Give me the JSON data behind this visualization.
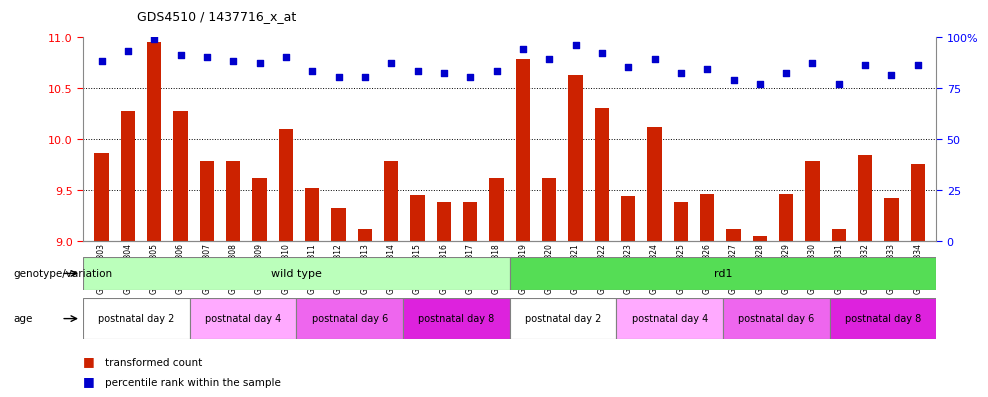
{
  "title": "GDS4510 / 1437716_x_at",
  "samples": [
    "GSM1024803",
    "GSM1024804",
    "GSM1024805",
    "GSM1024806",
    "GSM1024807",
    "GSM1024808",
    "GSM1024809",
    "GSM1024810",
    "GSM1024811",
    "GSM1024812",
    "GSM1024813",
    "GSM1024814",
    "GSM1024815",
    "GSM1024816",
    "GSM1024817",
    "GSM1024818",
    "GSM1024819",
    "GSM1024820",
    "GSM1024821",
    "GSM1024822",
    "GSM1024823",
    "GSM1024824",
    "GSM1024825",
    "GSM1024826",
    "GSM1024827",
    "GSM1024828",
    "GSM1024829",
    "GSM1024830",
    "GSM1024831",
    "GSM1024832",
    "GSM1024833",
    "GSM1024834"
  ],
  "bar_values": [
    9.86,
    10.27,
    10.95,
    10.27,
    9.78,
    9.78,
    9.62,
    10.1,
    9.52,
    9.32,
    9.12,
    9.78,
    9.45,
    9.38,
    9.38,
    9.62,
    10.78,
    9.62,
    10.62,
    10.3,
    9.44,
    10.12,
    9.38,
    9.46,
    9.12,
    9.05,
    9.46,
    9.78,
    9.12,
    9.84,
    9.42,
    9.75
  ],
  "percentile_values": [
    88,
    93,
    99,
    91,
    90,
    88,
    87,
    90,
    83,
    80,
    80,
    87,
    83,
    82,
    80,
    83,
    94,
    89,
    96,
    92,
    85,
    89,
    82,
    84,
    79,
    77,
    82,
    87,
    77,
    86,
    81,
    86
  ],
  "ylim_left": [
    9.0,
    11.0
  ],
  "ylim_right": [
    0,
    100
  ],
  "yticks_left": [
    9.0,
    9.5,
    10.0,
    10.5,
    11.0
  ],
  "yticks_right": [
    0,
    25,
    50,
    75,
    100
  ],
  "bar_color": "#cc2200",
  "dot_color": "#0000cc",
  "wild_type_color": "#bbffbb",
  "rd1_color": "#55dd55",
  "age_day2_color": "#ffffff",
  "age_day4_color": "#ffaaff",
  "age_day6_color": "#ee66ee",
  "age_day8_color": "#dd22dd",
  "bg_color": "#ffffff",
  "grid_color": "#000000",
  "legend_red": "#cc2200",
  "legend_blue": "#0000cc",
  "age_groups": [
    {
      "start": 0,
      "end": 4,
      "label": "postnatal day 2",
      "color": "#ffffff"
    },
    {
      "start": 4,
      "end": 8,
      "label": "postnatal day 4",
      "color": "#ffaaff"
    },
    {
      "start": 8,
      "end": 12,
      "label": "postnatal day 6",
      "color": "#ee66ee"
    },
    {
      "start": 12,
      "end": 16,
      "label": "postnatal day 8",
      "color": "#dd22dd"
    },
    {
      "start": 16,
      "end": 20,
      "label": "postnatal day 2",
      "color": "#ffffff"
    },
    {
      "start": 20,
      "end": 24,
      "label": "postnatal day 4",
      "color": "#ffaaff"
    },
    {
      "start": 24,
      "end": 28,
      "label": "postnatal day 6",
      "color": "#ee66ee"
    },
    {
      "start": 28,
      "end": 32,
      "label": "postnatal day 8",
      "color": "#dd22dd"
    }
  ]
}
